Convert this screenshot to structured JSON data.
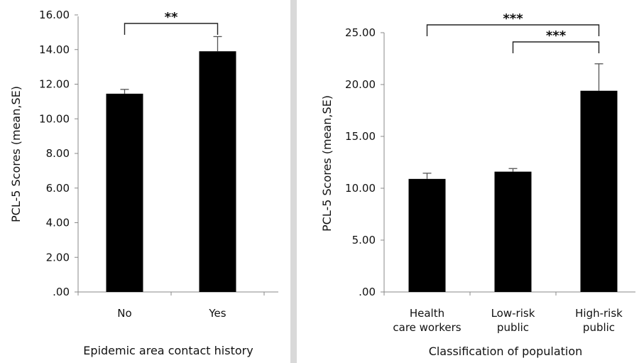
{
  "chart_data": [
    {
      "type": "bar",
      "categories": [
        "No",
        "Yes"
      ],
      "values": [
        11.45,
        13.9
      ],
      "error": [
        0.25,
        0.85
      ],
      "xlabel": "Epidemic area contact history",
      "ylabel": "PCL-5 Scores (mean,SE)",
      "ylim": [
        0,
        16
      ],
      "yticks": [
        ".00",
        "2.00",
        "4.00",
        "6.00",
        "8.00",
        "10.00",
        "12.00",
        "14.00",
        "16.00"
      ],
      "significance": [
        {
          "from": 0,
          "to": 1,
          "label": "**"
        }
      ],
      "bar_color": "#000000",
      "grid": false
    },
    {
      "type": "bar",
      "categories": [
        [
          "Health",
          "care workers"
        ],
        [
          "Low-risk",
          "public"
        ],
        [
          "High-risk",
          "public"
        ]
      ],
      "values": [
        10.9,
        11.6,
        19.4
      ],
      "error": [
        0.55,
        0.3,
        2.6
      ],
      "xlabel": "Classification of population",
      "ylabel": "PCL-5 Scores (mean,SE)",
      "ylim": [
        0,
        25
      ],
      "yticks": [
        ".00",
        "5.00",
        "10.00",
        "15.00",
        "20.00",
        "25.00"
      ],
      "significance": [
        {
          "from": 0,
          "to": 2,
          "label": "***"
        },
        {
          "from": 1,
          "to": 2,
          "label": "***"
        }
      ],
      "bar_color": "#000000",
      "grid": false
    }
  ]
}
